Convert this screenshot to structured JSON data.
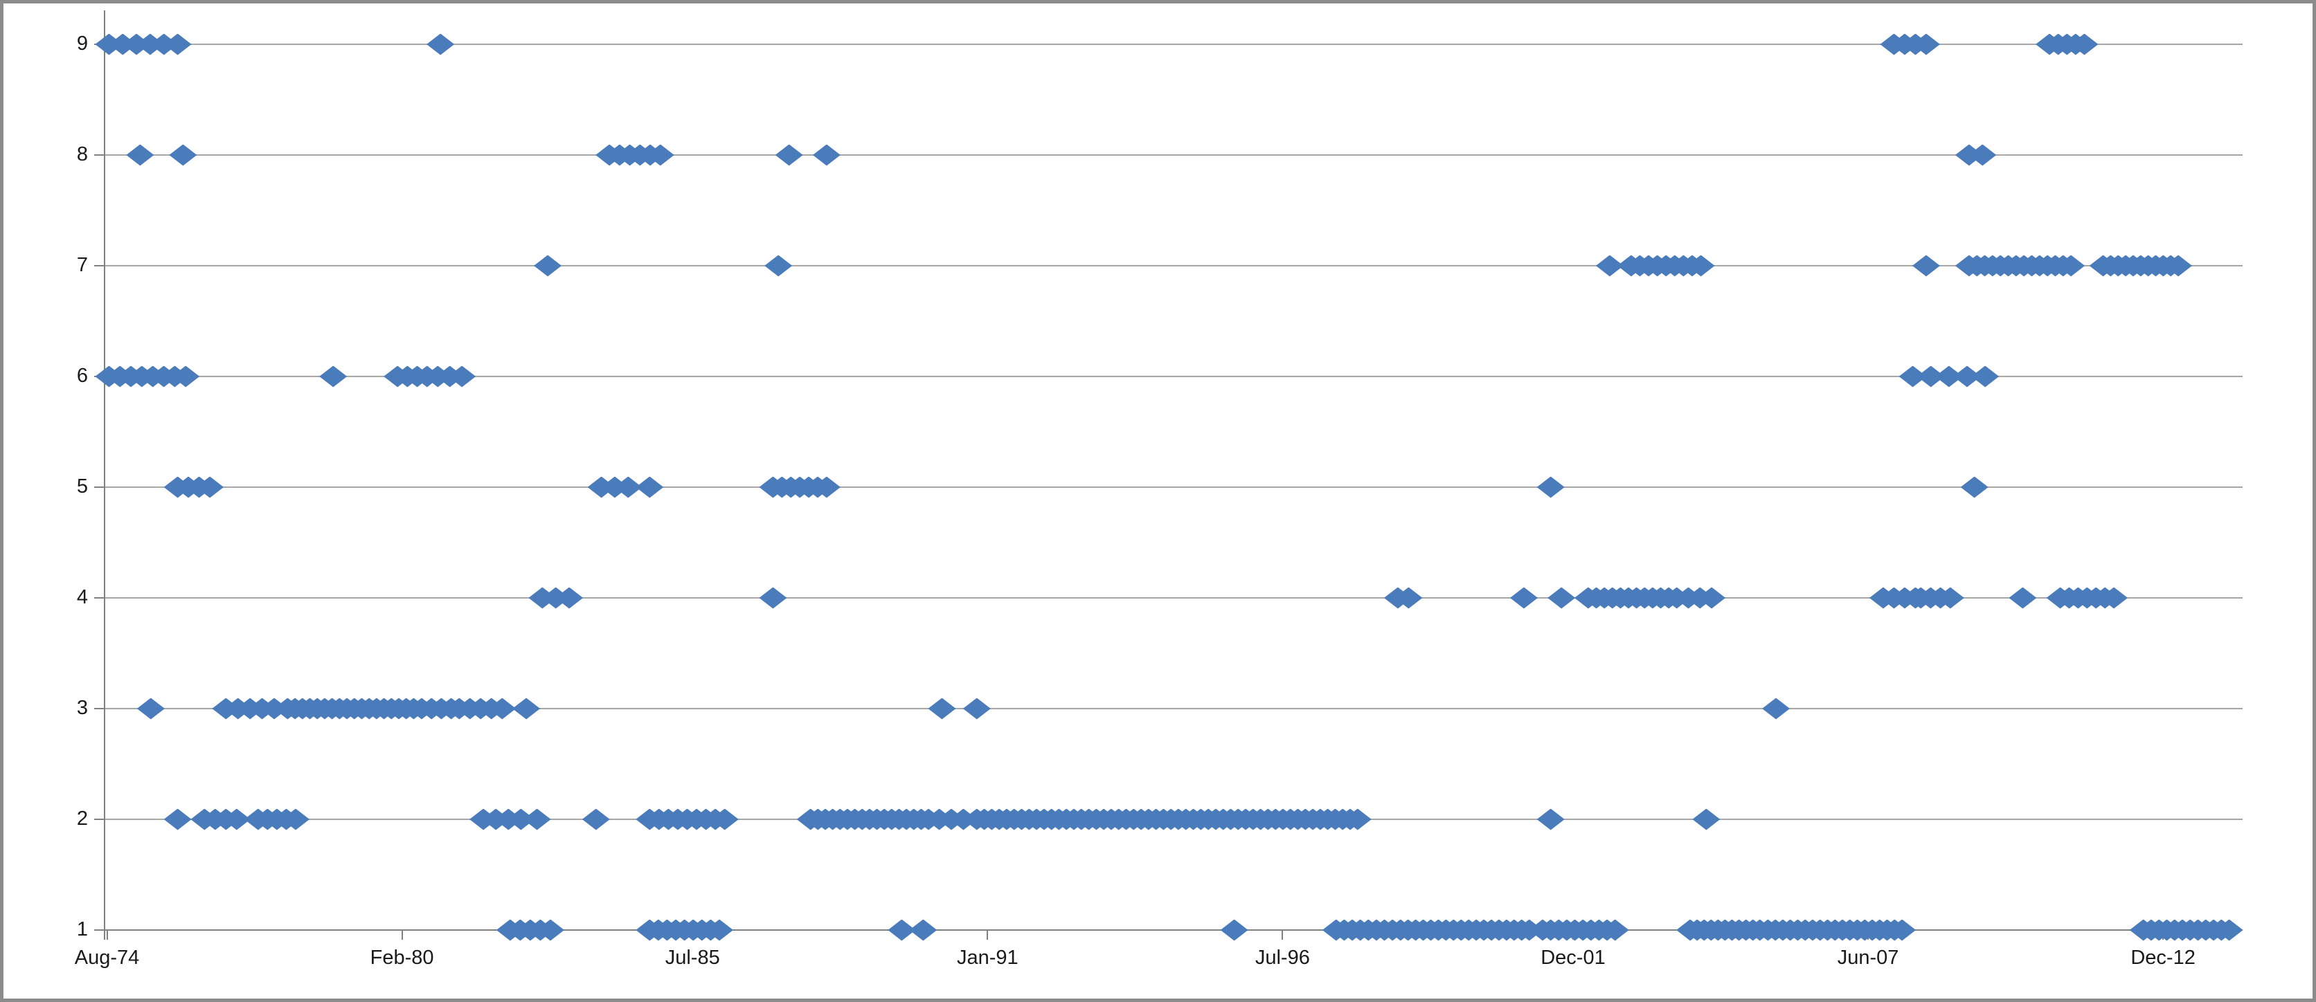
{
  "chart_data": {
    "type": "scatter",
    "title": "",
    "xlabel": "",
    "ylabel": "",
    "marker": {
      "shape": "diamond",
      "color": "#4a7bba"
    },
    "gridline_color": "#a6a6a6",
    "axis_color": "#808080",
    "grid": true,
    "legend": "none",
    "ylim": [
      1,
      9
    ],
    "y_ticks": [
      "9",
      "8",
      "7",
      "6",
      "5",
      "4",
      "3",
      "2",
      "1"
    ],
    "y_tick_values": [
      9,
      8,
      7,
      6,
      5,
      4,
      3,
      2,
      1
    ],
    "x_ticks": [
      "Aug-74",
      "Feb-80",
      "Jul-85",
      "Jan-91",
      "Jul-96",
      "Dec-01",
      "Jun-07",
      "Dec-12"
    ],
    "x_tick_values": [
      1974.583,
      1980.083,
      1985.5,
      1991.0,
      1996.5,
      2001.917,
      2007.417,
      2012.917
    ],
    "xlim": [
      1974.55,
      2014.4
    ],
    "clusters": [
      {
        "y": 9,
        "from": 1974.62,
        "to": 1975.9,
        "n": 6
      },
      {
        "y": 9,
        "from": 1980.8,
        "to": 1980.8,
        "n": 1
      },
      {
        "y": 9,
        "from": 2007.9,
        "to": 2008.5,
        "n": 4
      },
      {
        "y": 9,
        "from": 2010.8,
        "to": 2011.45,
        "n": 5
      },
      {
        "y": 8,
        "from": 1975.2,
        "to": 1975.2,
        "n": 1
      },
      {
        "y": 8,
        "from": 1976.0,
        "to": 1976.0,
        "n": 1
      },
      {
        "y": 8,
        "from": 1983.95,
        "to": 1984.9,
        "n": 6
      },
      {
        "y": 8,
        "from": 1987.3,
        "to": 1987.3,
        "n": 1
      },
      {
        "y": 8,
        "from": 1988.0,
        "to": 1988.0,
        "n": 1
      },
      {
        "y": 8,
        "from": 2009.3,
        "to": 2009.55,
        "n": 2
      },
      {
        "y": 7,
        "from": 1982.8,
        "to": 1982.8,
        "n": 1
      },
      {
        "y": 7,
        "from": 1987.1,
        "to": 1987.1,
        "n": 1
      },
      {
        "y": 7,
        "from": 2002.6,
        "to": 2002.6,
        "n": 1
      },
      {
        "y": 7,
        "from": 2003.0,
        "to": 2004.3,
        "n": 9
      },
      {
        "y": 7,
        "from": 2008.5,
        "to": 2008.5,
        "n": 1
      },
      {
        "y": 7,
        "from": 2009.3,
        "to": 2011.2,
        "n": 14
      },
      {
        "y": 7,
        "from": 2011.8,
        "to": 2013.2,
        "n": 11
      },
      {
        "y": 6,
        "from": 1974.62,
        "to": 1976.05,
        "n": 8
      },
      {
        "y": 6,
        "from": 1978.8,
        "to": 1978.8,
        "n": 1
      },
      {
        "y": 6,
        "from": 1980.0,
        "to": 1980.55,
        "n": 4
      },
      {
        "y": 6,
        "from": 1980.75,
        "to": 1981.2,
        "n": 3
      },
      {
        "y": 6,
        "from": 2008.25,
        "to": 2009.6,
        "n": 5
      },
      {
        "y": 5,
        "from": 1975.9,
        "to": 1976.5,
        "n": 4
      },
      {
        "y": 5,
        "from": 1983.8,
        "to": 1984.3,
        "n": 3
      },
      {
        "y": 5,
        "from": 1984.7,
        "to": 1984.7,
        "n": 1
      },
      {
        "y": 5,
        "from": 1987.0,
        "to": 1988.0,
        "n": 7
      },
      {
        "y": 5,
        "from": 2001.5,
        "to": 2001.5,
        "n": 1
      },
      {
        "y": 5,
        "from": 2009.4,
        "to": 2009.4,
        "n": 1
      },
      {
        "y": 4,
        "from": 1982.7,
        "to": 1983.2,
        "n": 3
      },
      {
        "y": 4,
        "from": 1987.0,
        "to": 1987.0,
        "n": 1
      },
      {
        "y": 4,
        "from": 1998.65,
        "to": 1998.85,
        "n": 2
      },
      {
        "y": 4,
        "from": 2001.0,
        "to": 2001.0,
        "n": 1
      },
      {
        "y": 4,
        "from": 2001.7,
        "to": 2001.7,
        "n": 1
      },
      {
        "y": 4,
        "from": 2002.2,
        "to": 2003.7,
        "n": 11
      },
      {
        "y": 4,
        "from": 2003.85,
        "to": 2004.5,
        "n": 4
      },
      {
        "y": 4,
        "from": 2007.7,
        "to": 2008.3,
        "n": 4
      },
      {
        "y": 4,
        "from": 2008.4,
        "to": 2008.95,
        "n": 4
      },
      {
        "y": 4,
        "from": 2010.3,
        "to": 2010.3,
        "n": 1
      },
      {
        "y": 4,
        "from": 2011.0,
        "to": 2012.0,
        "n": 7
      },
      {
        "y": 3,
        "from": 1975.4,
        "to": 1975.4,
        "n": 1
      },
      {
        "y": 3,
        "from": 1976.8,
        "to": 1977.7,
        "n": 5
      },
      {
        "y": 3,
        "from": 1977.95,
        "to": 1980.3,
        "n": 18
      },
      {
        "y": 3,
        "from": 1980.45,
        "to": 1981.0,
        "n": 4
      },
      {
        "y": 3,
        "from": 1981.15,
        "to": 1981.95,
        "n": 5
      },
      {
        "y": 3,
        "from": 1982.4,
        "to": 1982.4,
        "n": 1
      },
      {
        "y": 3,
        "from": 1990.15,
        "to": 1990.15,
        "n": 1
      },
      {
        "y": 3,
        "from": 1990.8,
        "to": 1990.8,
        "n": 1
      },
      {
        "y": 3,
        "from": 2005.7,
        "to": 2005.7,
        "n": 1
      },
      {
        "y": 2,
        "from": 1975.9,
        "to": 1975.9,
        "n": 1
      },
      {
        "y": 2,
        "from": 1976.4,
        "to": 1977.0,
        "n": 4
      },
      {
        "y": 2,
        "from": 1977.4,
        "to": 1978.1,
        "n": 5
      },
      {
        "y": 2,
        "from": 1981.6,
        "to": 1982.3,
        "n": 4
      },
      {
        "y": 2,
        "from": 1982.6,
        "to": 1982.6,
        "n": 1
      },
      {
        "y": 2,
        "from": 1983.7,
        "to": 1983.7,
        "n": 1
      },
      {
        "y": 2,
        "from": 1984.7,
        "to": 1986.1,
        "n": 9
      },
      {
        "y": 2,
        "from": 1987.7,
        "to": 1989.9,
        "n": 17
      },
      {
        "y": 2,
        "from": 1990.1,
        "to": 1990.55,
        "n": 3
      },
      {
        "y": 2,
        "from": 1990.8,
        "to": 1997.9,
        "n": 52
      },
      {
        "y": 2,
        "from": 2001.5,
        "to": 2001.5,
        "n": 1
      },
      {
        "y": 2,
        "from": 2004.4,
        "to": 2004.4,
        "n": 1
      },
      {
        "y": 1,
        "from": 1982.1,
        "to": 1982.85,
        "n": 5
      },
      {
        "y": 1,
        "from": 1984.7,
        "to": 1986.0,
        "n": 9
      },
      {
        "y": 1,
        "from": 1989.4,
        "to": 1989.4,
        "n": 1
      },
      {
        "y": 1,
        "from": 1989.8,
        "to": 1989.8,
        "n": 1
      },
      {
        "y": 1,
        "from": 1995.6,
        "to": 1995.6,
        "n": 1
      },
      {
        "y": 1,
        "from": 1997.5,
        "to": 1998.55,
        "n": 8
      },
      {
        "y": 1,
        "from": 1998.7,
        "to": 2001.1,
        "n": 18
      },
      {
        "y": 1,
        "from": 2001.35,
        "to": 2002.7,
        "n": 10
      },
      {
        "y": 1,
        "from": 2004.1,
        "to": 2005.4,
        "n": 11
      },
      {
        "y": 1,
        "from": 2005.55,
        "to": 2008.05,
        "n": 19
      },
      {
        "y": 1,
        "from": 2012.55,
        "to": 2014.15,
        "n": 12
      }
    ]
  }
}
